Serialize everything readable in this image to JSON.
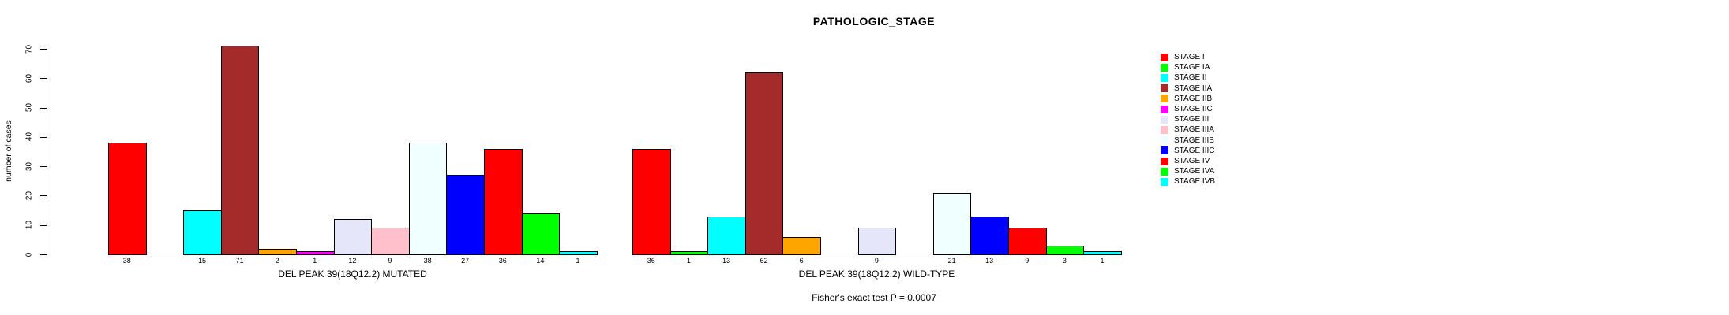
{
  "title": "PATHOLOGIC_STAGE",
  "chart_data": {
    "type": "bar",
    "title": "PATHOLOGIC_STAGE",
    "ylabel": "number of cases",
    "ylim": [
      0,
      70
    ],
    "yticks": [
      0,
      10,
      20,
      30,
      40,
      50,
      60,
      70
    ],
    "grid": false,
    "legend_position": "right",
    "categories": [
      "STAGE I",
      "STAGE IA",
      "STAGE II",
      "STAGE IIA",
      "STAGE IIB",
      "STAGE IIC",
      "STAGE III",
      "STAGE IIIA",
      "STAGE IIIB",
      "STAGE IIIC",
      "STAGE IV",
      "STAGE IVA",
      "STAGE IVB"
    ],
    "colors": [
      "#FF0000",
      "#00FF00",
      "#00FFFF",
      "#A52A2A",
      "#FFA500",
      "#FF00FF",
      "#E6E6FA",
      "#FFC0CB",
      "#F0FFFF",
      "#0000FF",
      "#FF0000",
      "#00FF00",
      "#00FFFF"
    ],
    "series": [
      {
        "name": "DEL PEAK 39(18Q12.2) MUTATED",
        "values": [
          38,
          0,
          15,
          71,
          2,
          1,
          12,
          9,
          38,
          27,
          36,
          14,
          1
        ]
      },
      {
        "name": "DEL PEAK 39(18Q12.2) WILD-TYPE",
        "values": [
          36,
          1,
          13,
          62,
          6,
          0,
          9,
          0,
          21,
          13,
          9,
          3,
          1
        ]
      }
    ],
    "bar_value_labels_shown": true,
    "zero_bars_shown_as": "baseline segment, no value label",
    "annotation": "Fisher's exact test P = 0.0007"
  }
}
